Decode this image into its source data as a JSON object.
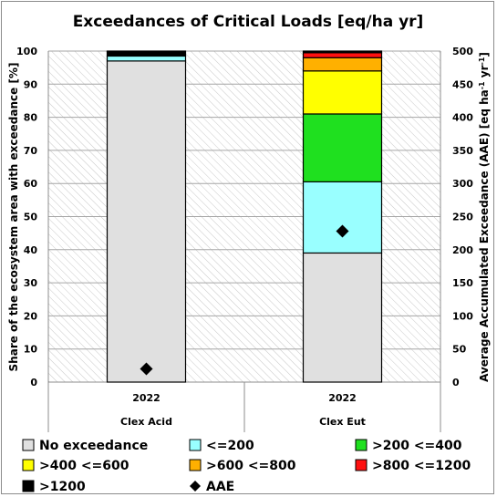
{
  "chart_data": {
    "type": "bar",
    "stacked": true,
    "title": "Exceedances of Critical Loads [eq/ha yr]",
    "ylabel_left": "Share of the ecosystem area with exceedance [%]",
    "ylabel_right_main": "Average Accumulated Exceedance (AAE) [eq ha",
    "ylabel_right_sup1": "-1",
    "ylabel_right_mid": " yr",
    "ylabel_right_sup2": "-1",
    "ylabel_right_end": "]",
    "ylim_left": [
      0,
      100
    ],
    "ylim_right": [
      0,
      500
    ],
    "yticks_left": [
      "0",
      "10",
      "20",
      "30",
      "40",
      "50",
      "60",
      "70",
      "80",
      "90",
      "100"
    ],
    "yticks_right": [
      "0",
      "50",
      "100",
      "150",
      "200",
      "250",
      "300",
      "350",
      "400",
      "450",
      "500"
    ],
    "grid": "horizontal, hatched plot background",
    "categories": [
      {
        "year": "2022",
        "label": "Clex Acid"
      },
      {
        "year": "2022",
        "label": "Clex Eut"
      }
    ],
    "series": [
      {
        "name": "No exceedance",
        "color": "#e0e0e0",
        "values": [
          97,
          39
        ]
      },
      {
        "name": "<=200",
        "color": "#99ffff",
        "values": [
          1.5,
          21.5
        ]
      },
      {
        "name": ">200 <=400",
        "color": "#1fe01f",
        "values": [
          0,
          20.5
        ]
      },
      {
        "name": ">400 <=600",
        "color": "#ffff00",
        "values": [
          0,
          13
        ]
      },
      {
        "name": ">600 <=800",
        "color": "#ffb000",
        "values": [
          0,
          4
        ]
      },
      {
        "name": ">800 <=1200",
        "color": "#ff1010",
        "values": [
          0,
          1.5
        ]
      },
      {
        "name": ">1200",
        "color": "#000000",
        "values": [
          1.5,
          0.5
        ]
      }
    ],
    "aae": {
      "name": "AAE",
      "marker": "diamond",
      "color": "#000000",
      "values": [
        20,
        228
      ]
    },
    "legend_position": "bottom"
  }
}
